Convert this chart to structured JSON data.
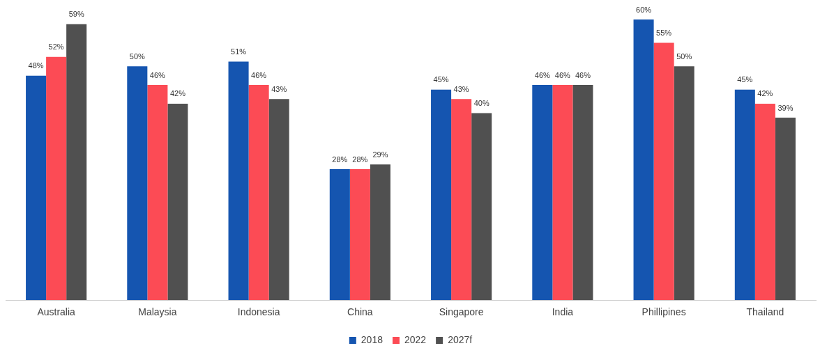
{
  "chart_data": {
    "type": "bar",
    "categories": [
      "Australia",
      "Malaysia",
      "Indonesia",
      "China",
      "Singapore",
      "India",
      "Phillipines",
      "Thailand"
    ],
    "series": [
      {
        "name": "2018",
        "color": "#1555b0",
        "values": [
          48,
          50,
          51,
          28,
          45,
          46,
          60,
          45
        ],
        "value_labels": [
          "48%",
          "50%",
          "51%",
          "28%",
          "45%",
          "46%",
          "60%",
          "45%"
        ]
      },
      {
        "name": "2022",
        "color": "#fc4b55",
        "values": [
          52,
          46,
          46,
          28,
          43,
          46,
          55,
          42
        ],
        "value_labels": [
          "52%",
          "46%",
          "46%",
          "28%",
          "43%",
          "46%",
          "55%",
          "42%"
        ]
      },
      {
        "name": "2027f",
        "color": "#505050",
        "values": [
          59,
          42,
          43,
          29,
          40,
          46,
          50,
          39
        ],
        "value_labels": [
          "59%",
          "42%",
          "43%",
          "29%",
          "40%",
          "46%",
          "50%",
          "39%"
        ]
      }
    ],
    "grid": false,
    "legend": "bottom"
  }
}
